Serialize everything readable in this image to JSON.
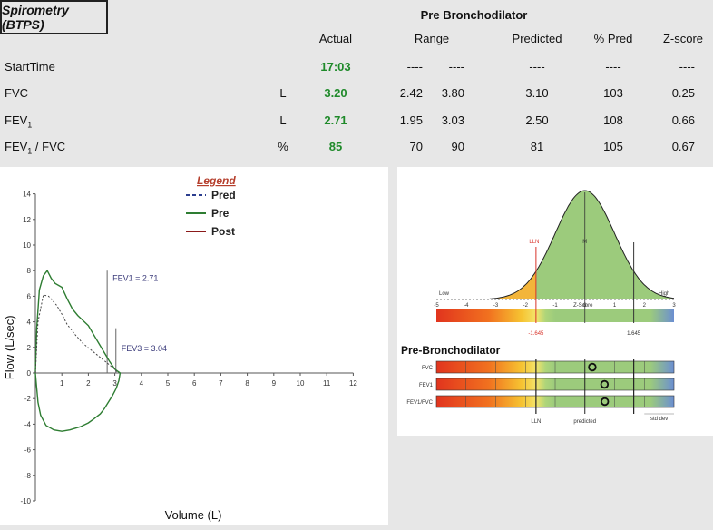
{
  "table": {
    "title": "Spirometry (BTPS)",
    "section": "Pre Bronchodilator",
    "headers": {
      "actual": "Actual",
      "range": "Range",
      "predicted": "Predicted",
      "pct_pred": "% Pred",
      "zscore": "Z-score"
    },
    "rows": [
      {
        "name": "StartTime",
        "name_sub": "",
        "name_suffix": "",
        "unit": "",
        "actual": "17:03",
        "range_lo": "----",
        "range_hi": "----",
        "predicted": "----",
        "pct_pred": "----",
        "zscore": "----"
      },
      {
        "name": "FVC",
        "name_sub": "",
        "name_suffix": "",
        "unit": "L",
        "actual": "3.20",
        "range_lo": "2.42",
        "range_hi": "3.80",
        "predicted": "3.10",
        "pct_pred": "103",
        "zscore": "0.25"
      },
      {
        "name": "FEV",
        "name_sub": "1",
        "name_suffix": "",
        "unit": "L",
        "actual": "2.71",
        "range_lo": "1.95",
        "range_hi": "3.03",
        "predicted": "2.50",
        "pct_pred": "108",
        "zscore": "0.66"
      },
      {
        "name": "FEV",
        "name_sub": "1",
        "name_suffix": " / FVC",
        "unit": "%",
        "actual": "85",
        "range_lo": "70",
        "range_hi": "90",
        "predicted": "81",
        "pct_pred": "105",
        "zscore": "0.67"
      }
    ]
  },
  "colors": {
    "actual_green": "#1f8a2a",
    "pred_blue": "#2c3e8f",
    "pre_green": "#2e7d32",
    "post_red": "#8b1a1a",
    "header_bg": "#e7e7e7"
  },
  "chart_data": [
    {
      "type": "line",
      "xlabel": "Volume (L)",
      "ylabel": "Flow  (L/sec)",
      "xlim": [
        0,
        12
      ],
      "ylim": [
        -10,
        14
      ],
      "x_ticks": [
        1,
        2,
        3,
        4,
        5,
        6,
        7,
        8,
        9,
        10,
        11,
        12
      ],
      "y_ticks": [
        14,
        12,
        10,
        8,
        6,
        4,
        2,
        0,
        -2,
        -4,
        -6,
        -8,
        -10
      ],
      "legend": {
        "title": "Legend",
        "entries": [
          "Pred",
          "Pre",
          "Post"
        ]
      },
      "annotations": [
        {
          "text": "FEV1 = 2.71",
          "x": 2.71
        },
        {
          "text": "FEV3 = 3.04",
          "x": 3.04
        }
      ],
      "series": [
        {
          "name": "Pre",
          "points": [
            [
              0,
              0
            ],
            [
              0.05,
              3.5
            ],
            [
              0.15,
              6.5
            ],
            [
              0.3,
              7.6
            ],
            [
              0.45,
              8.0
            ],
            [
              0.6,
              7.4
            ],
            [
              0.75,
              7.0
            ],
            [
              1.0,
              6.7
            ],
            [
              1.2,
              5.8
            ],
            [
              1.4,
              5.0
            ],
            [
              1.6,
              4.5
            ],
            [
              1.8,
              4.1
            ],
            [
              2.0,
              3.7
            ],
            [
              2.2,
              3.0
            ],
            [
              2.4,
              2.3
            ],
            [
              2.6,
              1.6
            ],
            [
              2.8,
              0.9
            ],
            [
              3.0,
              0.3
            ],
            [
              3.2,
              0
            ],
            [
              3.15,
              -0.6
            ],
            [
              3.05,
              -1.2
            ],
            [
              2.9,
              -1.8
            ],
            [
              2.75,
              -2.3
            ],
            [
              2.6,
              -2.8
            ],
            [
              2.45,
              -3.2
            ],
            [
              2.2,
              -3.6
            ],
            [
              2.0,
              -3.9
            ],
            [
              1.7,
              -4.2
            ],
            [
              1.3,
              -4.45
            ],
            [
              1.0,
              -4.55
            ],
            [
              0.7,
              -4.45
            ],
            [
              0.4,
              -4.1
            ],
            [
              0.2,
              -3.3
            ],
            [
              0.1,
              -2.3
            ],
            [
              0.05,
              -1.2
            ],
            [
              0,
              0
            ]
          ]
        },
        {
          "name": "Pred",
          "points": [
            [
              0,
              0
            ],
            [
              0.1,
              4.0
            ],
            [
              0.3,
              6.1
            ],
            [
              0.5,
              6.0
            ],
            [
              0.8,
              5.3
            ],
            [
              1.0,
              4.6
            ],
            [
              1.2,
              3.8
            ],
            [
              1.5,
              3.0
            ],
            [
              1.8,
              2.3
            ],
            [
              2.1,
              1.8
            ],
            [
              2.4,
              1.3
            ],
            [
              2.7,
              0.8
            ],
            [
              3.0,
              0.3
            ],
            [
              3.1,
              0
            ]
          ]
        }
      ]
    },
    {
      "type": "bell-curve",
      "x_ticks": [
        "-5",
        "-4",
        "-3",
        "-2",
        "-1",
        "0",
        "1",
        "2",
        "3"
      ],
      "labels": {
        "low": "Low",
        "high": "High",
        "lln": "LLN",
        "mean": "M",
        "zscore": "Z-Score",
        "lln_value": "-1.645",
        "uln_value": "1.645"
      },
      "xlim": [
        -5,
        3
      ],
      "lln": -1.645,
      "uln": 1.645
    },
    {
      "type": "zscore-bars",
      "title": "Pre-Bronchodilator",
      "categories": [
        "FVC",
        "FEV1",
        "FEV1/FVC"
      ],
      "values": [
        0.25,
        0.66,
        0.67
      ],
      "xlim": [
        -5,
        3
      ],
      "footer": {
        "lln": "LLN",
        "predicted": "predicted",
        "sd": "std dev"
      }
    }
  ]
}
